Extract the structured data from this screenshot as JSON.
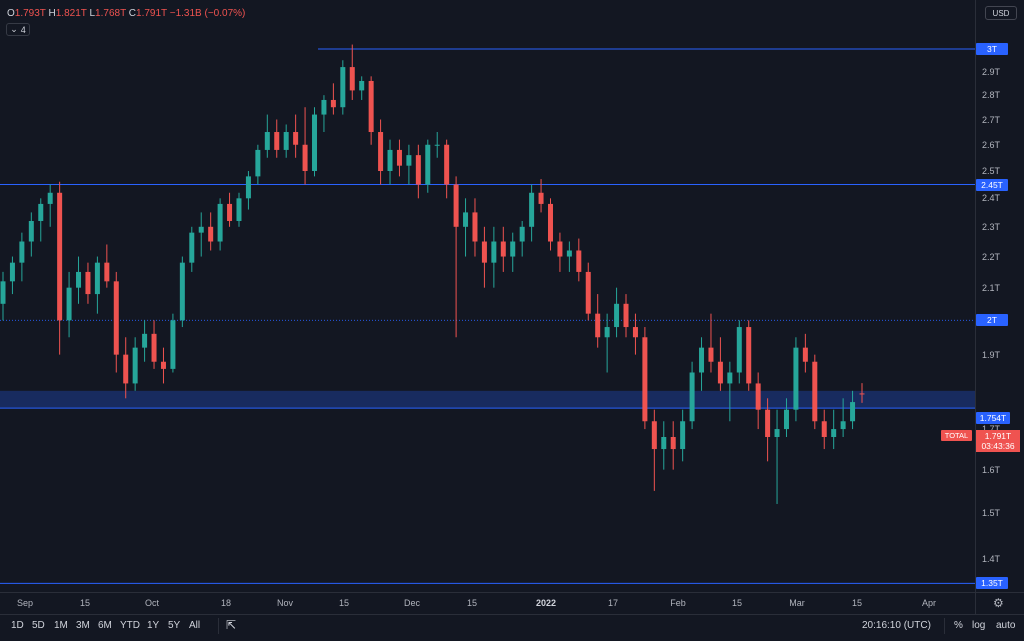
{
  "legend": {
    "o_key": "O",
    "o_val": "1.793T",
    "h_key": "H",
    "h_val": "1.821T",
    "l_key": "L",
    "l_val": "1.768T",
    "c_key": "C",
    "c_val": "1.791T",
    "change": "−1.31B (−0.07%)",
    "indicators_count": "4"
  },
  "currency_button": "USD",
  "price_ticks": [
    "2.9T",
    "2.8T",
    "2.7T",
    "2.6T",
    "2.5T",
    "2.4T",
    "2.3T",
    "2.2T",
    "2.1T",
    "1.9T",
    "1.7T",
    "1.6T",
    "1.5T",
    "1.4T"
  ],
  "levels": [
    {
      "label": "3T",
      "value": 3.0
    },
    {
      "label": "2.45T",
      "value": 2.45
    },
    {
      "label": "2T",
      "value": 2.0
    },
    {
      "label": "1.754T",
      "value": 1.754
    },
    {
      "label": "1.35T",
      "value": 1.35
    }
  ],
  "total_tag": "TOTAL",
  "last_price": {
    "value": "1.791T",
    "countdown": "03:43:36"
  },
  "time_ticks": [
    {
      "label": "Sep",
      "bold": false
    },
    {
      "label": "15",
      "bold": false
    },
    {
      "label": "Oct",
      "bold": false
    },
    {
      "label": "18",
      "bold": false
    },
    {
      "label": "Nov",
      "bold": false
    },
    {
      "label": "15",
      "bold": false
    },
    {
      "label": "Dec",
      "bold": false
    },
    {
      "label": "15",
      "bold": false
    },
    {
      "label": "2022",
      "bold": true
    },
    {
      "label": "17",
      "bold": false
    },
    {
      "label": "Feb",
      "bold": false
    },
    {
      "label": "15",
      "bold": false
    },
    {
      "label": "Mar",
      "bold": false
    },
    {
      "label": "15",
      "bold": false
    },
    {
      "label": "Apr",
      "bold": false
    }
  ],
  "range_buttons": [
    "1D",
    "5D",
    "1M",
    "3M",
    "6M",
    "YTD",
    "1Y",
    "5Y",
    "All"
  ],
  "bottom_right": {
    "clock": "20:16:10 (UTC)",
    "percent": "%",
    "log": "log",
    "auto": "auto"
  },
  "colors": {
    "up": "#26a69a",
    "down": "#ef5350",
    "level": "#2962ff",
    "background": "#131722"
  },
  "chart_data": {
    "type": "candlestick",
    "y_scale": "log",
    "ylim": [
      1.3,
      3.1
    ],
    "currency": "USD",
    "xlim_days": [
      0,
      235
    ],
    "candles_ohlc": [
      [
        2.05,
        2.15,
        2.0,
        2.12
      ],
      [
        2.12,
        2.2,
        2.08,
        2.18
      ],
      [
        2.18,
        2.28,
        2.12,
        2.25
      ],
      [
        2.25,
        2.35,
        2.2,
        2.32
      ],
      [
        2.32,
        2.4,
        2.25,
        2.38
      ],
      [
        2.38,
        2.45,
        2.3,
        2.42
      ],
      [
        2.42,
        2.46,
        1.9,
        2.0
      ],
      [
        2.0,
        2.15,
        1.95,
        2.1
      ],
      [
        2.1,
        2.2,
        2.05,
        2.15
      ],
      [
        2.15,
        2.18,
        2.05,
        2.08
      ],
      [
        2.08,
        2.2,
        2.02,
        2.18
      ],
      [
        2.18,
        2.24,
        2.1,
        2.12
      ],
      [
        2.12,
        2.15,
        1.85,
        1.9
      ],
      [
        1.9,
        1.95,
        1.78,
        1.82
      ],
      [
        1.82,
        1.95,
        1.8,
        1.92
      ],
      [
        1.92,
        2.0,
        1.88,
        1.96
      ],
      [
        1.96,
        2.0,
        1.86,
        1.88
      ],
      [
        1.88,
        1.92,
        1.82,
        1.86
      ],
      [
        1.86,
        2.02,
        1.85,
        2.0
      ],
      [
        2.0,
        2.2,
        1.98,
        2.18
      ],
      [
        2.18,
        2.3,
        2.15,
        2.28
      ],
      [
        2.28,
        2.35,
        2.2,
        2.3
      ],
      [
        2.3,
        2.35,
        2.22,
        2.25
      ],
      [
        2.25,
        2.4,
        2.22,
        2.38
      ],
      [
        2.38,
        2.42,
        2.3,
        2.32
      ],
      [
        2.32,
        2.42,
        2.3,
        2.4
      ],
      [
        2.4,
        2.5,
        2.36,
        2.48
      ],
      [
        2.48,
        2.6,
        2.45,
        2.58
      ],
      [
        2.58,
        2.72,
        2.55,
        2.65
      ],
      [
        2.65,
        2.7,
        2.55,
        2.58
      ],
      [
        2.58,
        2.68,
        2.55,
        2.65
      ],
      [
        2.65,
        2.72,
        2.55,
        2.6
      ],
      [
        2.6,
        2.75,
        2.45,
        2.5
      ],
      [
        2.5,
        2.75,
        2.48,
        2.72
      ],
      [
        2.72,
        2.8,
        2.65,
        2.78
      ],
      [
        2.78,
        2.85,
        2.72,
        2.75
      ],
      [
        2.75,
        2.95,
        2.72,
        2.92
      ],
      [
        2.92,
        3.02,
        2.78,
        2.82
      ],
      [
        2.82,
        2.88,
        2.78,
        2.86
      ],
      [
        2.86,
        2.88,
        2.6,
        2.65
      ],
      [
        2.65,
        2.7,
        2.45,
        2.5
      ],
      [
        2.5,
        2.62,
        2.45,
        2.58
      ],
      [
        2.58,
        2.62,
        2.48,
        2.52
      ],
      [
        2.52,
        2.6,
        2.45,
        2.56
      ],
      [
        2.56,
        2.6,
        2.4,
        2.45
      ],
      [
        2.45,
        2.62,
        2.42,
        2.6
      ],
      [
        2.6,
        2.65,
        2.55,
        2.6
      ],
      [
        2.6,
        2.62,
        2.4,
        2.45
      ],
      [
        2.45,
        2.48,
        1.95,
        2.3
      ],
      [
        2.3,
        2.4,
        2.2,
        2.35
      ],
      [
        2.35,
        2.4,
        2.2,
        2.25
      ],
      [
        2.25,
        2.3,
        2.1,
        2.18
      ],
      [
        2.18,
        2.3,
        2.1,
        2.25
      ],
      [
        2.25,
        2.3,
        2.15,
        2.2
      ],
      [
        2.2,
        2.28,
        2.15,
        2.25
      ],
      [
        2.25,
        2.32,
        2.2,
        2.3
      ],
      [
        2.3,
        2.45,
        2.25,
        2.42
      ],
      [
        2.42,
        2.47,
        2.35,
        2.38
      ],
      [
        2.38,
        2.4,
        2.22,
        2.25
      ],
      [
        2.25,
        2.28,
        2.15,
        2.2
      ],
      [
        2.2,
        2.25,
        2.15,
        2.22
      ],
      [
        2.22,
        2.26,
        2.12,
        2.15
      ],
      [
        2.15,
        2.18,
        2.0,
        2.02
      ],
      [
        2.02,
        2.08,
        1.92,
        1.95
      ],
      [
        1.95,
        2.02,
        1.85,
        1.98
      ],
      [
        1.98,
        2.1,
        1.95,
        2.05
      ],
      [
        2.05,
        2.08,
        1.95,
        1.98
      ],
      [
        1.98,
        2.02,
        1.9,
        1.95
      ],
      [
        1.95,
        1.98,
        1.7,
        1.72
      ],
      [
        1.72,
        1.75,
        1.55,
        1.65
      ],
      [
        1.65,
        1.72,
        1.6,
        1.68
      ],
      [
        1.68,
        1.72,
        1.6,
        1.65
      ],
      [
        1.65,
        1.75,
        1.62,
        1.72
      ],
      [
        1.72,
        1.88,
        1.7,
        1.85
      ],
      [
        1.85,
        1.95,
        1.8,
        1.92
      ],
      [
        1.92,
        2.02,
        1.85,
        1.88
      ],
      [
        1.88,
        1.95,
        1.8,
        1.82
      ],
      [
        1.82,
        1.88,
        1.72,
        1.85
      ],
      [
        1.85,
        2.0,
        1.82,
        1.98
      ],
      [
        1.98,
        2.0,
        1.8,
        1.82
      ],
      [
        1.82,
        1.85,
        1.7,
        1.75
      ],
      [
        1.75,
        1.78,
        1.62,
        1.68
      ],
      [
        1.68,
        1.75,
        1.52,
        1.7
      ],
      [
        1.7,
        1.78,
        1.68,
        1.75
      ],
      [
        1.75,
        1.95,
        1.72,
        1.92
      ],
      [
        1.92,
        1.96,
        1.85,
        1.88
      ],
      [
        1.88,
        1.9,
        1.7,
        1.72
      ],
      [
        1.72,
        1.75,
        1.65,
        1.68
      ],
      [
        1.68,
        1.75,
        1.65,
        1.7
      ],
      [
        1.7,
        1.78,
        1.68,
        1.72
      ],
      [
        1.72,
        1.8,
        1.7,
        1.77
      ],
      [
        1.793,
        1.821,
        1.768,
        1.791
      ]
    ]
  }
}
